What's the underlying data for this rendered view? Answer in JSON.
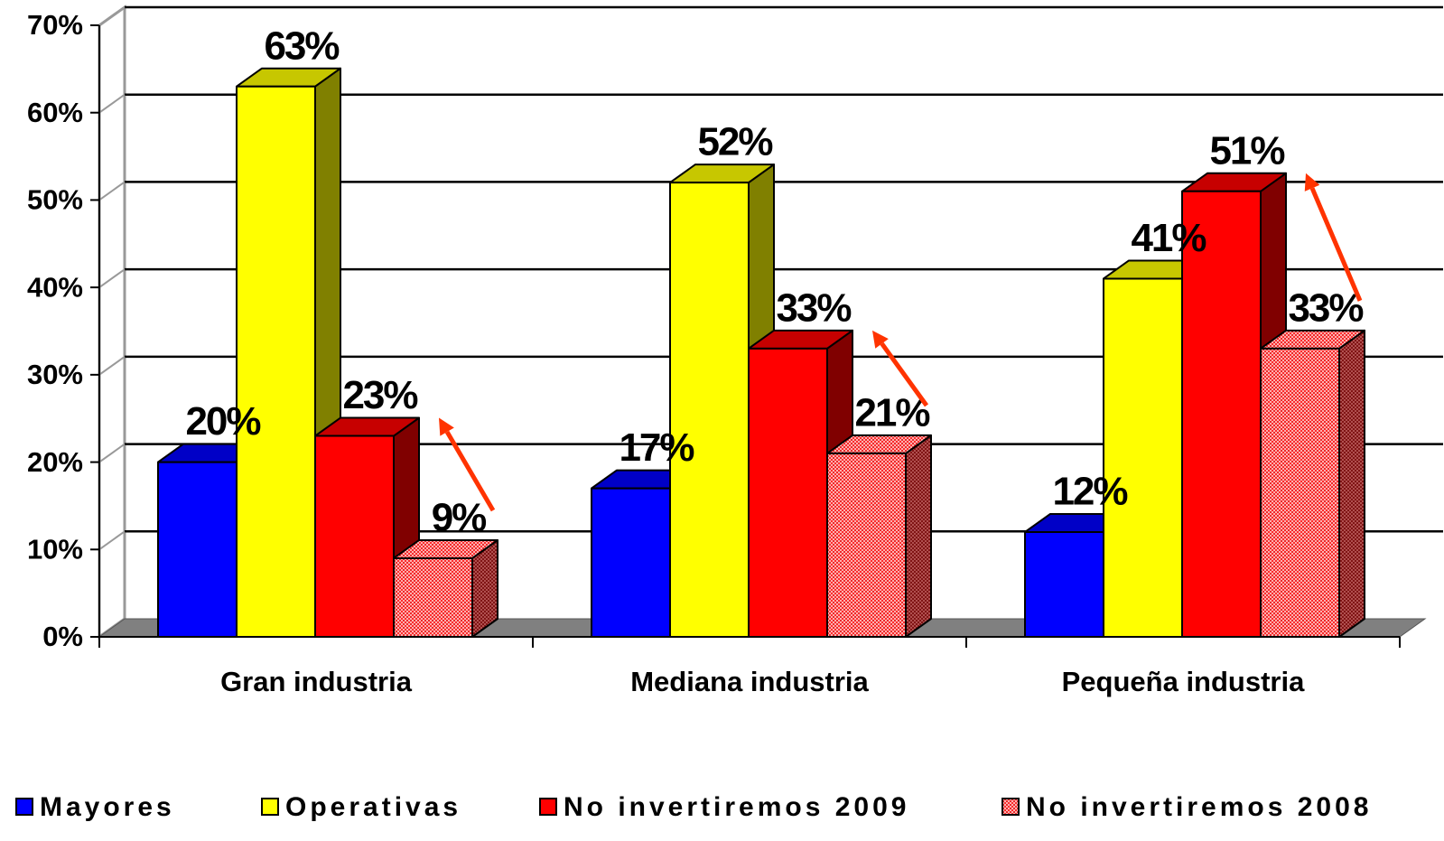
{
  "chart_data": {
    "type": "bar3d",
    "categories": [
      "Gran industria",
      "Mediana industria",
      "Pequeña industria"
    ],
    "series": [
      {
        "name": "Mayores",
        "color": "#0000ff",
        "values": [
          20,
          17,
          12
        ],
        "value_labels": [
          "20%",
          "17%",
          "12%"
        ]
      },
      {
        "name": "Operativas",
        "color": "#ffff00",
        "values": [
          63,
          52,
          41
        ],
        "value_labels": [
          "63%",
          "52%",
          "41%"
        ]
      },
      {
        "name": "No invertiremos 2009",
        "color": "#ff0000",
        "values": [
          23,
          33,
          51
        ],
        "value_labels": [
          "23%",
          "33%",
          "51%"
        ]
      },
      {
        "name": "No invertiremos 2008",
        "color": "#ff0000",
        "pattern": "dots",
        "values": [
          9,
          21,
          33
        ],
        "value_labels": [
          "9%",
          "21%",
          "33%"
        ]
      }
    ],
    "ylim": [
      0,
      70
    ],
    "yticks": [
      {
        "value": 0,
        "label": "0%"
      },
      {
        "value": 10,
        "label": "10%"
      },
      {
        "value": 20,
        "label": "20%"
      },
      {
        "value": 30,
        "label": "30%"
      },
      {
        "value": 40,
        "label": "40%"
      },
      {
        "value": 50,
        "label": "50%"
      },
      {
        "value": 60,
        "label": "60%"
      },
      {
        "value": 70,
        "label": "70%"
      }
    ],
    "grid": true,
    "legend": "bottom"
  }
}
